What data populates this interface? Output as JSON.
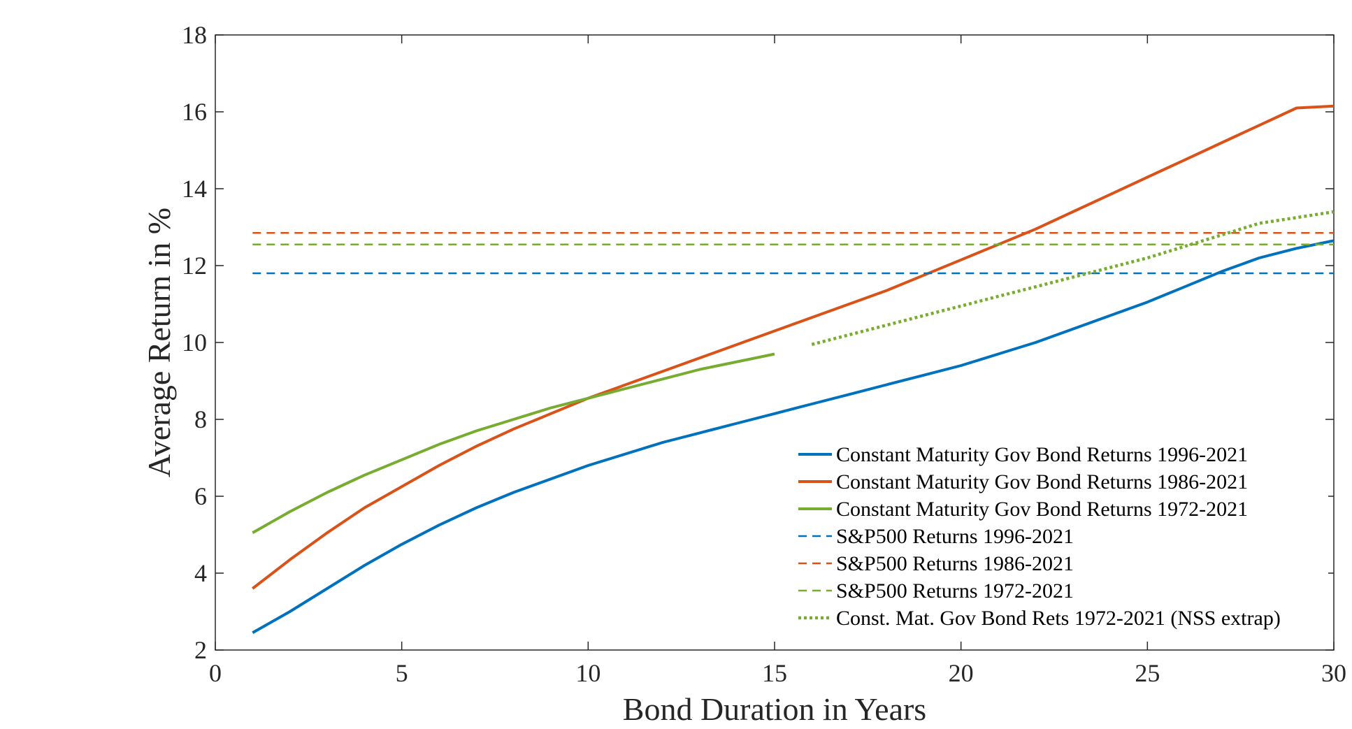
{
  "chart_data": {
    "type": "line",
    "xlabel": "Bond Duration in Years",
    "ylabel": "Average Return in %",
    "xlim": [
      0,
      30
    ],
    "ylim": [
      2,
      18
    ],
    "xticks": [
      0,
      5,
      10,
      15,
      20,
      25,
      30
    ],
    "yticks": [
      2,
      4,
      6,
      8,
      10,
      12,
      14,
      16,
      18
    ],
    "grid": false,
    "legend_position": "bottom-right",
    "series": [
      {
        "name": "Constant Maturity Gov Bond Returns 1996-2021",
        "color": "#0072BD",
        "style": "solid",
        "x": [
          1,
          2,
          3,
          4,
          5,
          6,
          7,
          8,
          9,
          10,
          11,
          12,
          13,
          14,
          15,
          16,
          17,
          18,
          19,
          20,
          21,
          22,
          23,
          24,
          25,
          26,
          27,
          28,
          29,
          30
        ],
        "y": [
          2.45,
          3.0,
          3.6,
          4.2,
          4.75,
          5.25,
          5.7,
          6.1,
          6.45,
          6.8,
          7.1,
          7.4,
          7.65,
          7.9,
          8.15,
          8.4,
          8.65,
          8.9,
          9.15,
          9.4,
          9.7,
          10.0,
          10.35,
          10.7,
          11.05,
          11.45,
          11.85,
          12.2,
          12.45,
          12.65
        ]
      },
      {
        "name": "Constant Maturity Gov Bond Returns 1986-2021",
        "color": "#D95319",
        "style": "solid",
        "x": [
          1,
          2,
          3,
          4,
          5,
          6,
          7,
          8,
          9,
          10,
          11,
          12,
          13,
          14,
          15,
          16,
          17,
          18,
          19,
          20,
          21,
          22,
          23,
          24,
          25,
          26,
          27,
          28,
          29,
          30
        ],
        "y": [
          3.6,
          4.35,
          5.05,
          5.7,
          6.25,
          6.8,
          7.3,
          7.75,
          8.15,
          8.55,
          8.9,
          9.25,
          9.6,
          9.95,
          10.3,
          10.65,
          11.0,
          11.35,
          11.75,
          12.15,
          12.55,
          12.95,
          13.4,
          13.85,
          14.3,
          14.75,
          15.2,
          15.65,
          16.1,
          16.15
        ]
      },
      {
        "name": "Constant Maturity Gov Bond Returns 1972-2021",
        "color": "#77AC30",
        "style": "solid",
        "x": [
          1,
          2,
          3,
          4,
          5,
          6,
          7,
          8,
          9,
          10,
          11,
          12,
          13,
          14,
          15
        ],
        "y": [
          5.05,
          5.6,
          6.1,
          6.55,
          6.95,
          7.35,
          7.7,
          8.0,
          8.3,
          8.55,
          8.8,
          9.05,
          9.3,
          9.5,
          9.7
        ]
      },
      {
        "name": "S&P500 Returns 1996-2021",
        "color": "#0072BD",
        "style": "dashed",
        "x": [
          1,
          30
        ],
        "y": [
          11.8,
          11.8
        ]
      },
      {
        "name": "S&P500 Returns 1986-2021",
        "color": "#D95319",
        "style": "dashed",
        "x": [
          1,
          30
        ],
        "y": [
          12.85,
          12.85
        ]
      },
      {
        "name": "S&P500 Returns 1972-2021",
        "color": "#77AC30",
        "style": "dashed",
        "x": [
          1,
          30
        ],
        "y": [
          12.55,
          12.55
        ]
      },
      {
        "name": "Const. Mat. Gov Bond Rets 1972-2021 (NSS extrap)",
        "color": "#77AC30",
        "style": "dotted",
        "x": [
          16,
          17,
          18,
          19,
          20,
          21,
          22,
          23,
          24,
          25,
          26,
          27,
          28,
          29,
          30
        ],
        "y": [
          9.95,
          10.2,
          10.45,
          10.7,
          10.95,
          11.2,
          11.45,
          11.7,
          11.95,
          12.2,
          12.5,
          12.8,
          13.1,
          13.25,
          13.4
        ]
      }
    ]
  }
}
